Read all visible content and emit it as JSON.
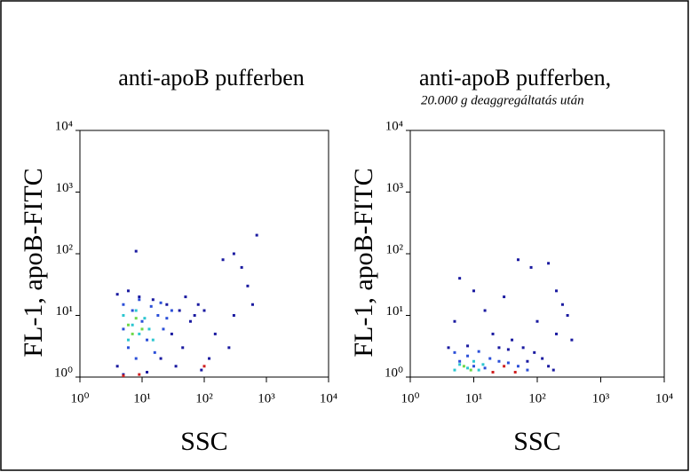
{
  "chart_data": [
    {
      "type": "scatter",
      "title": "anti-apoB pufferben",
      "xlabel": "SSC",
      "ylabel": "FL-1, apoB-FITC",
      "xscale": "log",
      "yscale": "log",
      "xlim": [
        1,
        10000
      ],
      "ylim": [
        1,
        10000
      ],
      "xticks": [
        {
          "value": 1,
          "label": "10⁰"
        },
        {
          "value": 10,
          "label": "10¹"
        },
        {
          "value": 100,
          "label": "10²"
        },
        {
          "value": 1000,
          "label": "10³"
        },
        {
          "value": 10000,
          "label": "10⁴"
        }
      ],
      "yticks": [
        {
          "value": 1,
          "label": "10⁰"
        },
        {
          "value": 10,
          "label": "10¹"
        },
        {
          "value": 100,
          "label": "10²"
        },
        {
          "value": 1000,
          "label": "10³"
        },
        {
          "value": 10000,
          "label": "10⁴"
        }
      ],
      "series": [
        {
          "color": "#1a1aa0",
          "x": [
            4,
            6,
            9,
            15,
            25,
            40,
            60,
            50,
            30,
            20,
            45,
            70,
            4,
            12,
            35,
            100,
            150,
            80,
            120,
            8,
            200,
            400,
            300,
            700,
            500,
            600,
            300,
            250,
            90,
            5
          ],
          "values": [
            22,
            25,
            20,
            18,
            15,
            12,
            8,
            20,
            5,
            2,
            3,
            10,
            1.5,
            1.2,
            1.5,
            12,
            5,
            15,
            2,
            110,
            80,
            60,
            100,
            200,
            30,
            15,
            10,
            3,
            1.3,
            1.1
          ]
        },
        {
          "color": "#2b4fd8",
          "x": [
            5,
            7,
            10,
            14,
            18,
            22,
            12,
            6,
            8,
            16,
            25,
            30,
            5,
            9,
            20
          ],
          "values": [
            15,
            12,
            8,
            14,
            10,
            6,
            4,
            3,
            2,
            2.5,
            9,
            12,
            6,
            18,
            16
          ]
        },
        {
          "color": "#2cc6d0",
          "x": [
            5,
            7,
            9,
            11,
            6,
            13,
            8,
            15
          ],
          "values": [
            10,
            7,
            5,
            9,
            4,
            6,
            12,
            4
          ]
        },
        {
          "color": "#6fd84a",
          "x": [
            6,
            8,
            7,
            10
          ],
          "values": [
            7,
            9,
            5,
            6
          ]
        },
        {
          "color": "#d02020",
          "x": [
            5,
            9,
            100
          ],
          "values": [
            1.05,
            1.1,
            1.5
          ]
        }
      ]
    },
    {
      "type": "scatter",
      "title": "anti-apoB pufferben,",
      "subtitle": "20.000 g deaggregáltatás után",
      "xlabel": "SSC",
      "ylabel": "FL-1, apoB-FITC",
      "xscale": "log",
      "yscale": "log",
      "xlim": [
        1,
        10000
      ],
      "ylim": [
        1,
        10000
      ],
      "xticks": [
        {
          "value": 1,
          "label": "10⁰"
        },
        {
          "value": 10,
          "label": "10¹"
        },
        {
          "value": 100,
          "label": "10²"
        },
        {
          "value": 1000,
          "label": "10³"
        },
        {
          "value": 10000,
          "label": "10⁴"
        }
      ],
      "yticks": [
        {
          "value": 1,
          "label": "10⁰"
        },
        {
          "value": 10,
          "label": "10¹"
        },
        {
          "value": 100,
          "label": "10²"
        },
        {
          "value": 1000,
          "label": "10³"
        },
        {
          "value": 10000,
          "label": "10⁴"
        }
      ],
      "series": [
        {
          "color": "#1a1aa0",
          "x": [
            6,
            10,
            15,
            30,
            50,
            80,
            150,
            200,
            250,
            300,
            5,
            20,
            40,
            60,
            90,
            120,
            150,
            180,
            70,
            35,
            25,
            4,
            8,
            100,
            200,
            350
          ],
          "values": [
            40,
            25,
            12,
            20,
            80,
            60,
            70,
            25,
            15,
            10,
            8,
            5,
            4,
            3,
            2.5,
            2,
            1.5,
            1.3,
            1.8,
            2.8,
            3,
            3,
            3.2,
            8,
            5,
            4
          ]
        },
        {
          "color": "#2b4fd8",
          "x": [
            5,
            8,
            12,
            18,
            25,
            35,
            50,
            70,
            6,
            10,
            15
          ],
          "values": [
            2.5,
            2.2,
            2.6,
            2,
            1.8,
            1.7,
            1.5,
            1.3,
            1.8,
            1.5,
            1.4
          ]
        },
        {
          "color": "#2cc6d0",
          "x": [
            6,
            8,
            10,
            12,
            14,
            5
          ],
          "values": [
            1.6,
            1.4,
            1.8,
            1.3,
            1.6,
            1.3
          ]
        },
        {
          "color": "#6fd84a",
          "x": [
            7,
            9
          ],
          "values": [
            1.5,
            1.3
          ]
        },
        {
          "color": "#d02020",
          "x": [
            20,
            30,
            45
          ],
          "values": [
            1.2,
            1.5,
            1.2
          ]
        }
      ]
    }
  ]
}
